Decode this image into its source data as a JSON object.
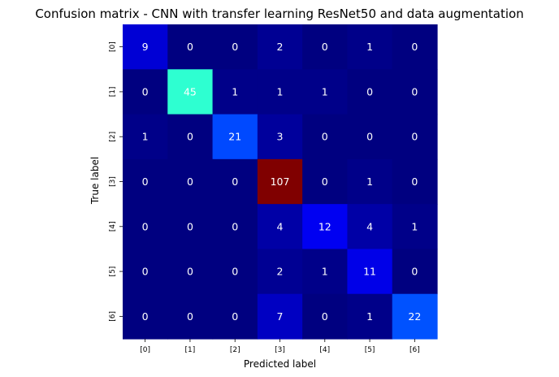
{
  "chart_data": {
    "type": "heatmap",
    "title": "Confusion matrix - CNN with transfer learning ResNet50 and data augmentation",
    "xlabel": "Predicted label",
    "ylabel": "True label",
    "x_categories": [
      "[0]",
      "[1]",
      "[2]",
      "[3]",
      "[4]",
      "[5]",
      "[6]"
    ],
    "y_categories": [
      "[0]",
      "[1]",
      "[2]",
      "[3]",
      "[4]",
      "[5]",
      "[6]"
    ],
    "values": [
      [
        9,
        0,
        0,
        2,
        0,
        1,
        0
      ],
      [
        0,
        45,
        1,
        1,
        1,
        0,
        0
      ],
      [
        1,
        0,
        21,
        3,
        0,
        0,
        0
      ],
      [
        0,
        0,
        0,
        107,
        0,
        1,
        0
      ],
      [
        0,
        0,
        0,
        4,
        12,
        4,
        1
      ],
      [
        0,
        0,
        0,
        2,
        1,
        11,
        0
      ],
      [
        0,
        0,
        0,
        7,
        0,
        1,
        22
      ]
    ],
    "colormap": "jet",
    "value_range": [
      0,
      107
    ],
    "colorbar": false,
    "grid": false
  }
}
